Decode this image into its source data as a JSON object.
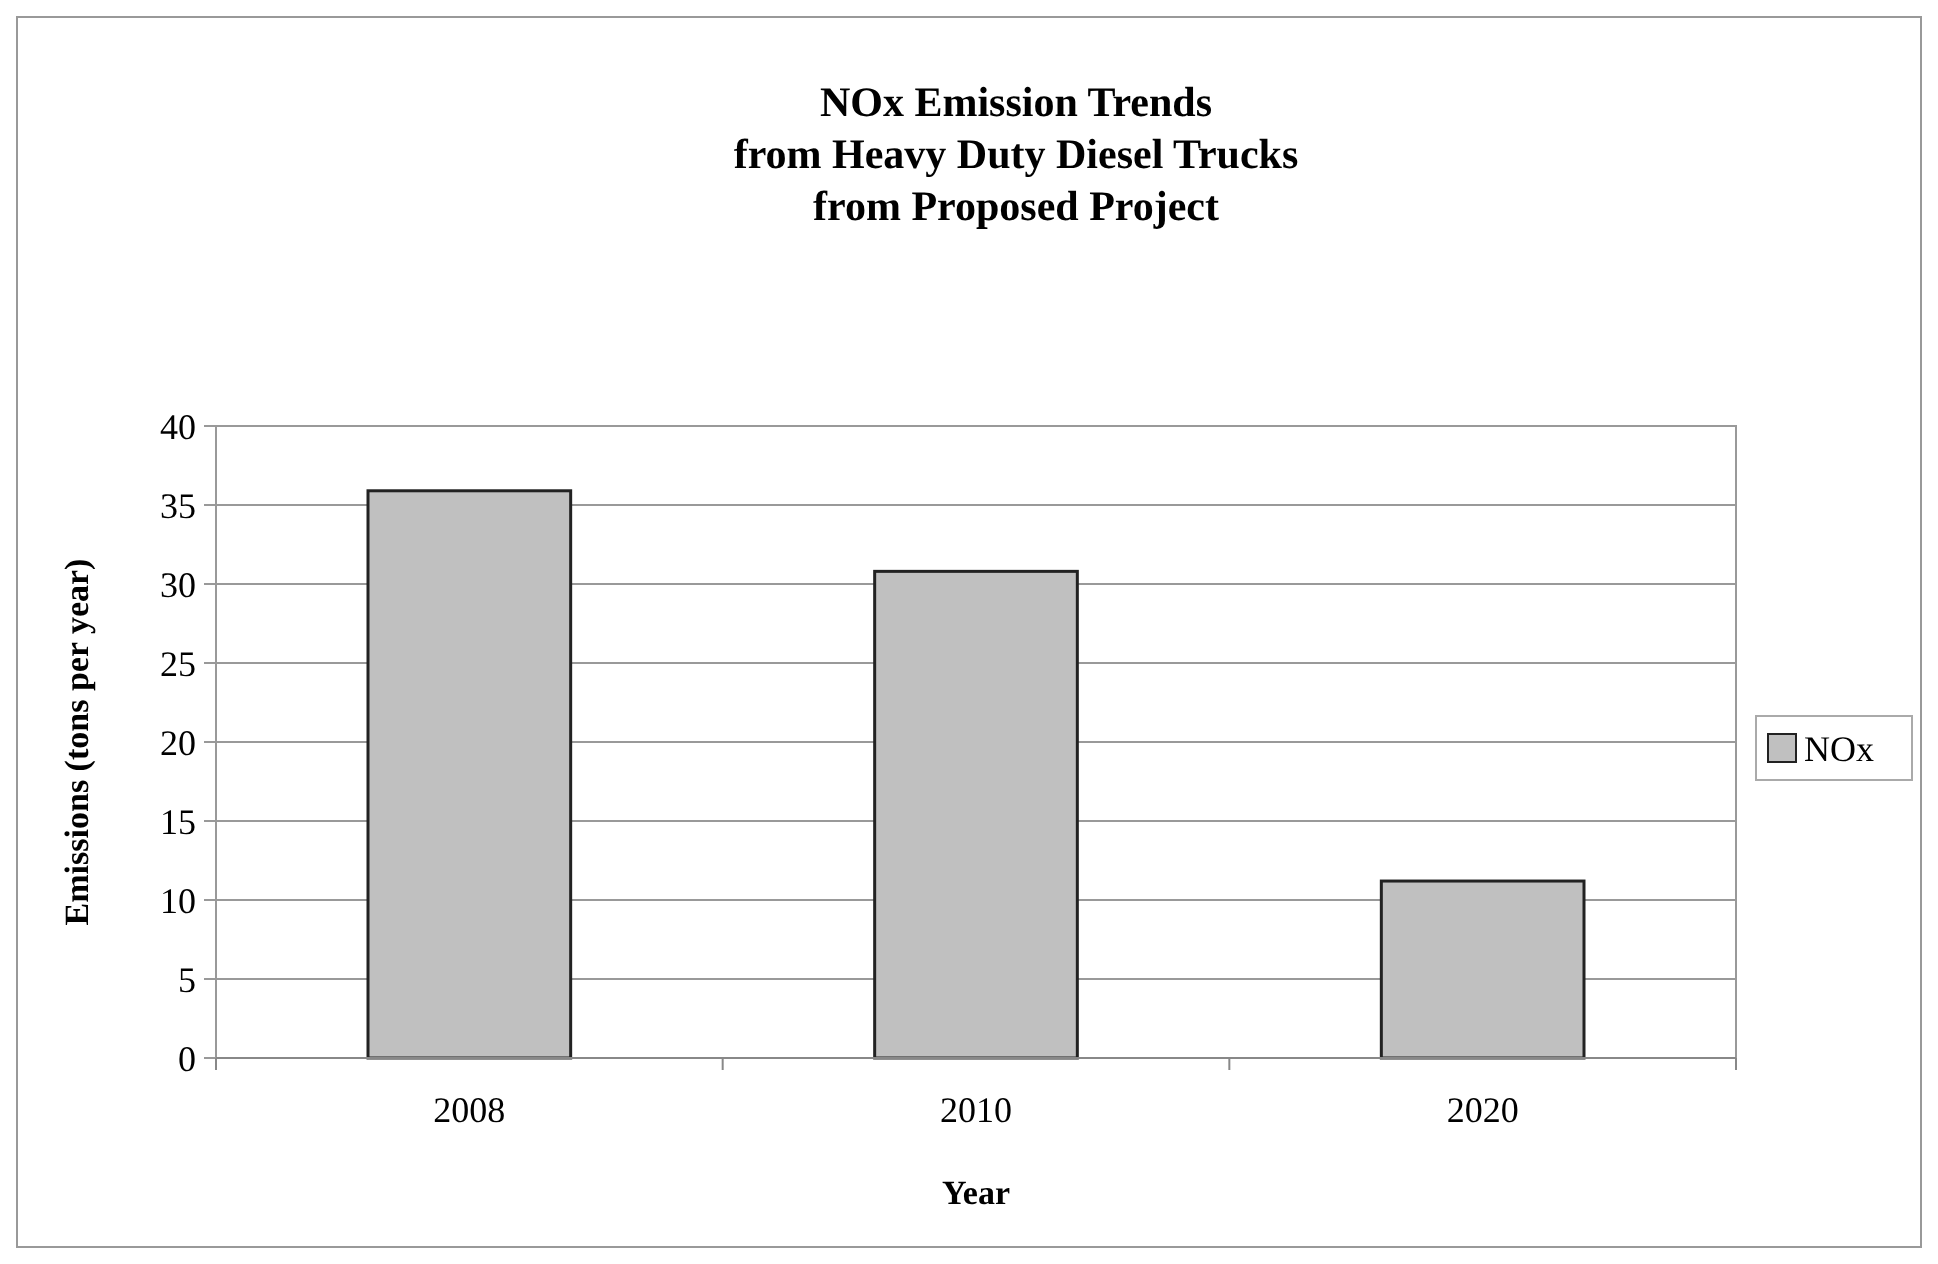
{
  "chart_data": {
    "type": "bar",
    "title": "NOx Emission Trends\nfrom Heavy Duty Diesel Trucks\nfrom Proposed Project",
    "xlabel": "Year",
    "ylabel": "Emissions (tons per year)",
    "categories": [
      "2008",
      "2010",
      "2020"
    ],
    "series": [
      {
        "name": "NOx",
        "color": "#c0c0c0",
        "values": [
          35.9,
          30.8,
          11.2
        ]
      }
    ],
    "ylim": [
      0,
      40
    ],
    "yticks": [
      0,
      5,
      10,
      15,
      20,
      25,
      30,
      35,
      40
    ],
    "grid": "y",
    "legend": "right"
  }
}
